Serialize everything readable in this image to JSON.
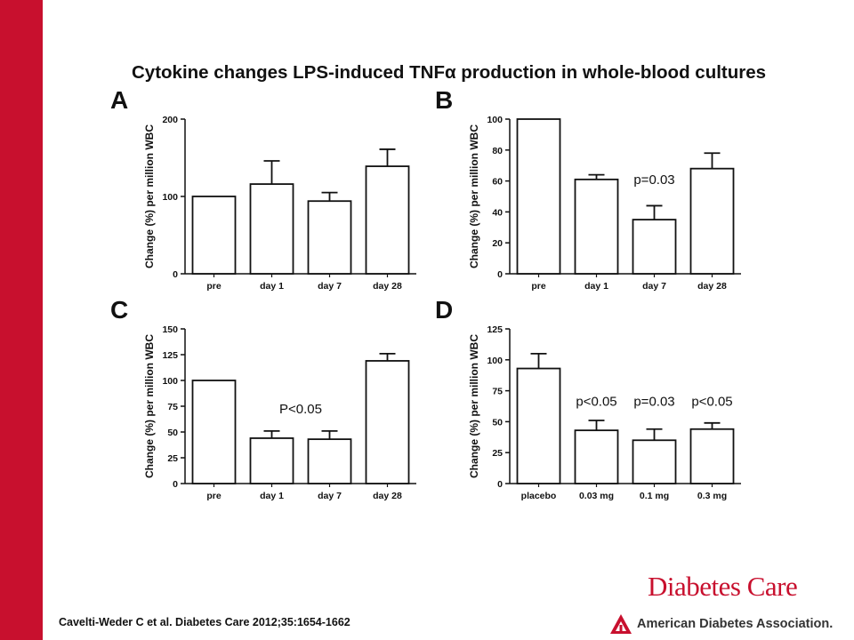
{
  "slide": {
    "title": "Cytokine changes LPS-induced TNFα production in whole-blood cultures",
    "citation": "Cavelti-Weder C et al. Diabetes Care 2012;35:1654-1662",
    "journal_logo": "Diabetes Care",
    "org_logo": "American Diabetes Association.",
    "colors": {
      "accent": "#c8102e",
      "bars": "#ffffff",
      "stroke": "#111111"
    }
  },
  "chart_data": [
    {
      "type": "bar",
      "panel": "A",
      "ylabel": "Change (%) per million WBC",
      "ylim": [
        0,
        200
      ],
      "yticks": [
        0,
        100,
        200
      ],
      "categories": [
        "pre",
        "day 1",
        "day 7",
        "day 28"
      ],
      "values": [
        100,
        116,
        94,
        139
      ],
      "errors": [
        0,
        30,
        11,
        22
      ],
      "annotations": []
    },
    {
      "type": "bar",
      "panel": "B",
      "ylabel": "Change (%) per million WBC",
      "ylim": [
        0,
        100
      ],
      "yticks": [
        0,
        20,
        40,
        60,
        80,
        100
      ],
      "categories": [
        "pre",
        "day 1",
        "day 7",
        "day 28"
      ],
      "values": [
        100,
        61,
        35,
        68
      ],
      "errors": [
        0,
        3,
        9,
        10
      ],
      "annotations": [
        {
          "text": "p=0.03",
          "category": 2,
          "y": 58
        }
      ]
    },
    {
      "type": "bar",
      "panel": "C",
      "ylabel": "Change (%) per million WBC",
      "ylim": [
        0,
        150
      ],
      "yticks": [
        0,
        25,
        50,
        75,
        100,
        125,
        150
      ],
      "categories": [
        "pre",
        "day 1",
        "day 7",
        "day 28"
      ],
      "values": [
        100,
        44,
        43,
        119
      ],
      "errors": [
        0,
        7,
        8,
        7
      ],
      "annotations": [
        {
          "text": "P<0.05",
          "category": 1.5,
          "y": 68
        }
      ]
    },
    {
      "type": "bar",
      "panel": "D",
      "ylabel": "Change (%) per million WBC",
      "ylim": [
        0,
        125
      ],
      "yticks": [
        0,
        25,
        50,
        75,
        100,
        125
      ],
      "categories": [
        "placebo",
        "0.03 mg",
        "0.1 mg",
        "0.3 mg"
      ],
      "values": [
        93,
        43,
        35,
        44
      ],
      "errors": [
        12,
        8,
        9,
        5
      ],
      "annotations": [
        {
          "text": "p<0.05",
          "category": 1,
          "y": 63
        },
        {
          "text": "p=0.03",
          "category": 2,
          "y": 63
        },
        {
          "text": "p<0.05",
          "category": 3,
          "y": 63
        }
      ]
    }
  ]
}
